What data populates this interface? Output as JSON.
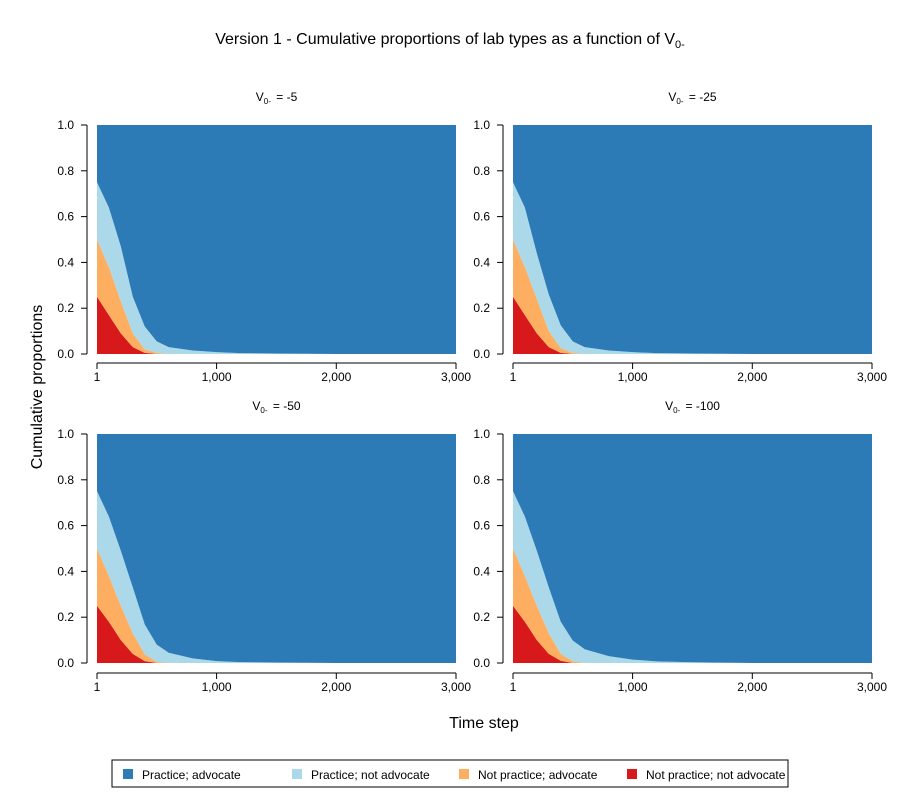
{
  "title": {
    "prefix": "Version 1 - Cumulative proportions of lab types as a function of V",
    "subscript": "0-"
  },
  "colors": {
    "practice_advocate": "#2c7bb6",
    "practice_not_advocate": "#abd9e9",
    "not_practice_advocate": "#fdae61",
    "not_practice_not_advocate": "#d7191c"
  },
  "legend": [
    {
      "label": "Practice; advocate",
      "color": "#2c7bb6"
    },
    {
      "label": "Practice; not advocate",
      "color": "#abd9e9"
    },
    {
      "label": "Not practice; advocate",
      "color": "#fdae61"
    },
    {
      "label": "Not practice; not advocate",
      "color": "#d7191c"
    }
  ],
  "chart_data": {
    "type": "area",
    "stacked": true,
    "xlabel": "Time step",
    "ylabel": "Cumulative proportions",
    "xlim": [
      1,
      3000
    ],
    "ylim": [
      0,
      1
    ],
    "xticks": [
      1,
      1000,
      2000,
      3000
    ],
    "xtick_labels": [
      "1",
      "1,000",
      "2,000",
      "3,000"
    ],
    "yticks": [
      0,
      0.2,
      0.4,
      0.6,
      0.8,
      1
    ],
    "ytick_labels": [
      "0.0",
      "0.2",
      "0.4",
      "0.6",
      "0.8",
      "1.0"
    ],
    "layout": "2x2",
    "panels": [
      {
        "title_var": "V",
        "title_sub": "0-",
        "title_value": "= -5",
        "x": [
          1,
          100,
          200,
          300,
          400,
          500,
          600,
          800,
          1000,
          1200,
          1500,
          2000,
          3000
        ],
        "series": [
          {
            "name": "Not practice; not advocate",
            "values": [
              0.25,
              0.17,
              0.09,
              0.03,
              0.005,
              0.0,
              0.0,
              0,
              0,
              0,
              0,
              0,
              0
            ]
          },
          {
            "name": "Not practice; advocate",
            "values": [
              0.25,
              0.21,
              0.14,
              0.06,
              0.015,
              0.005,
              0.0,
              0,
              0,
              0,
              0,
              0,
              0
            ]
          },
          {
            "name": "Practice; not advocate",
            "values": [
              0.25,
              0.26,
              0.24,
              0.16,
              0.1,
              0.05,
              0.03,
              0.015,
              0.008,
              0.004,
              0.002,
              0.0,
              0.0
            ]
          },
          {
            "name": "Practice; advocate",
            "values": [
              0.25,
              0.36,
              0.53,
              0.75,
              0.88,
              0.945,
              0.97,
              0.985,
              0.992,
              0.996,
              0.998,
              1.0,
              1.0
            ]
          }
        ]
      },
      {
        "title_var": "V",
        "title_sub": "0-",
        "title_value": "= -25",
        "x": [
          1,
          100,
          200,
          300,
          400,
          500,
          600,
          800,
          1000,
          1200,
          1500,
          2000,
          3000
        ],
        "series": [
          {
            "name": "Not practice; not advocate",
            "values": [
              0.25,
              0.17,
              0.09,
              0.03,
              0.005,
              0.0,
              0.0,
              0,
              0,
              0,
              0,
              0,
              0
            ]
          },
          {
            "name": "Not practice; advocate",
            "values": [
              0.25,
              0.21,
              0.15,
              0.07,
              0.02,
              0.005,
              0.0,
              0,
              0,
              0,
              0,
              0,
              0
            ]
          },
          {
            "name": "Practice; not advocate",
            "values": [
              0.25,
              0.26,
              0.2,
              0.16,
              0.1,
              0.05,
              0.03,
              0.015,
              0.008,
              0.004,
              0.002,
              0.0,
              0.0
            ]
          },
          {
            "name": "Practice; advocate",
            "values": [
              0.25,
              0.36,
              0.56,
              0.74,
              0.875,
              0.945,
              0.97,
              0.985,
              0.992,
              0.996,
              0.998,
              1.0,
              1.0
            ]
          }
        ]
      },
      {
        "title_var": "V",
        "title_sub": "0-",
        "title_value": "= -50",
        "x": [
          1,
          100,
          200,
          300,
          400,
          500,
          600,
          800,
          1000,
          1200,
          1500,
          2000,
          3000
        ],
        "series": [
          {
            "name": "Not practice; not advocate",
            "values": [
              0.25,
              0.18,
              0.1,
              0.04,
              0.008,
              0.0,
              0.0,
              0,
              0,
              0,
              0,
              0,
              0
            ]
          },
          {
            "name": "Not practice; advocate",
            "values": [
              0.25,
              0.2,
              0.15,
              0.09,
              0.03,
              0.005,
              0.0,
              0,
              0,
              0,
              0,
              0,
              0
            ]
          },
          {
            "name": "Practice; not advocate",
            "values": [
              0.25,
              0.26,
              0.24,
              0.2,
              0.13,
              0.075,
              0.045,
              0.02,
              0.008,
              0.004,
              0.002,
              0.0,
              0.0
            ]
          },
          {
            "name": "Practice; advocate",
            "values": [
              0.25,
              0.36,
              0.51,
              0.67,
              0.832,
              0.92,
              0.955,
              0.98,
              0.992,
              0.996,
              0.998,
              1.0,
              1.0
            ]
          }
        ]
      },
      {
        "title_var": "V",
        "title_sub": "0-",
        "title_value": "= -100",
        "x": [
          1,
          100,
          200,
          300,
          400,
          500,
          600,
          800,
          1000,
          1200,
          1500,
          2000,
          3000
        ],
        "series": [
          {
            "name": "Not practice; not advocate",
            "values": [
              0.25,
              0.18,
              0.1,
              0.04,
              0.01,
              0.0,
              0.0,
              0,
              0,
              0,
              0,
              0,
              0
            ]
          },
          {
            "name": "Not practice; advocate",
            "values": [
              0.25,
              0.2,
              0.15,
              0.09,
              0.03,
              0.008,
              0.0,
              0,
              0,
              0,
              0,
              0,
              0
            ]
          },
          {
            "name": "Practice; not advocate",
            "values": [
              0.25,
              0.26,
              0.24,
              0.2,
              0.14,
              0.09,
              0.06,
              0.03,
              0.015,
              0.007,
              0.003,
              0.0,
              0.0
            ]
          },
          {
            "name": "Practice; advocate",
            "values": [
              0.25,
              0.36,
              0.51,
              0.67,
              0.82,
              0.902,
              0.94,
              0.97,
              0.985,
              0.993,
              0.997,
              1.0,
              1.0
            ]
          }
        ]
      }
    ]
  }
}
